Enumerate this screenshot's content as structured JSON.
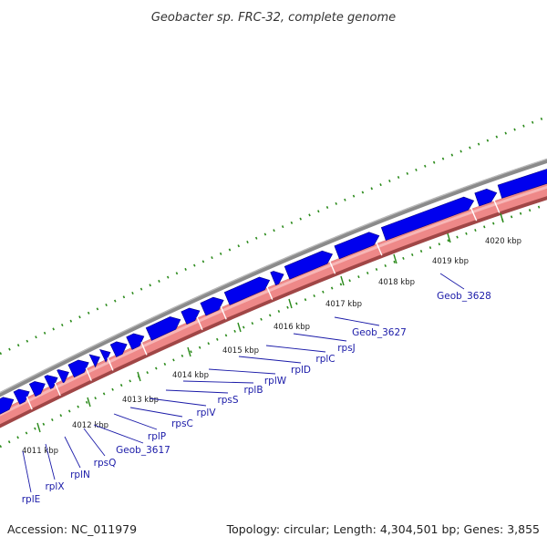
{
  "title": "Geobacter sp. FRC-32, complete genome",
  "footer": {
    "accession": "Accession: NC_011979",
    "summary": "Topology: circular; Length: 4,304,501 bp; Genes: 3,855"
  },
  "colors": {
    "backbone": "#888888",
    "gene_arrow": "#0000ee",
    "gene_arrow_highlight": "#7777ff",
    "cds_band": "#ee8888",
    "cds_band_edge": "#a04646",
    "gc_dots": "#2a8a1a",
    "gene_label": "#1a1aa8",
    "label_line": "#1a1aa8"
  },
  "scale_ticks": [
    {
      "label": "4011 kbp"
    },
    {
      "label": "4012 kbp"
    },
    {
      "label": "4013 kbp"
    },
    {
      "label": "4014 kbp"
    },
    {
      "label": "4015 kbp"
    },
    {
      "label": "4016 kbp"
    },
    {
      "label": "4017 kbp"
    },
    {
      "label": "4018 kbp"
    },
    {
      "label": "4019 kbp"
    },
    {
      "label": "4020 kbp"
    }
  ],
  "gene_labels": [
    "rplE",
    "rplX",
    "rplN",
    "rpsQ",
    "Geob_3617",
    "rplP",
    "rpsC",
    "rplV",
    "rpsS",
    "rplB",
    "rplW",
    "rplD",
    "rplC",
    "rpsJ",
    "Geob_3627",
    "Geob_3628"
  ]
}
